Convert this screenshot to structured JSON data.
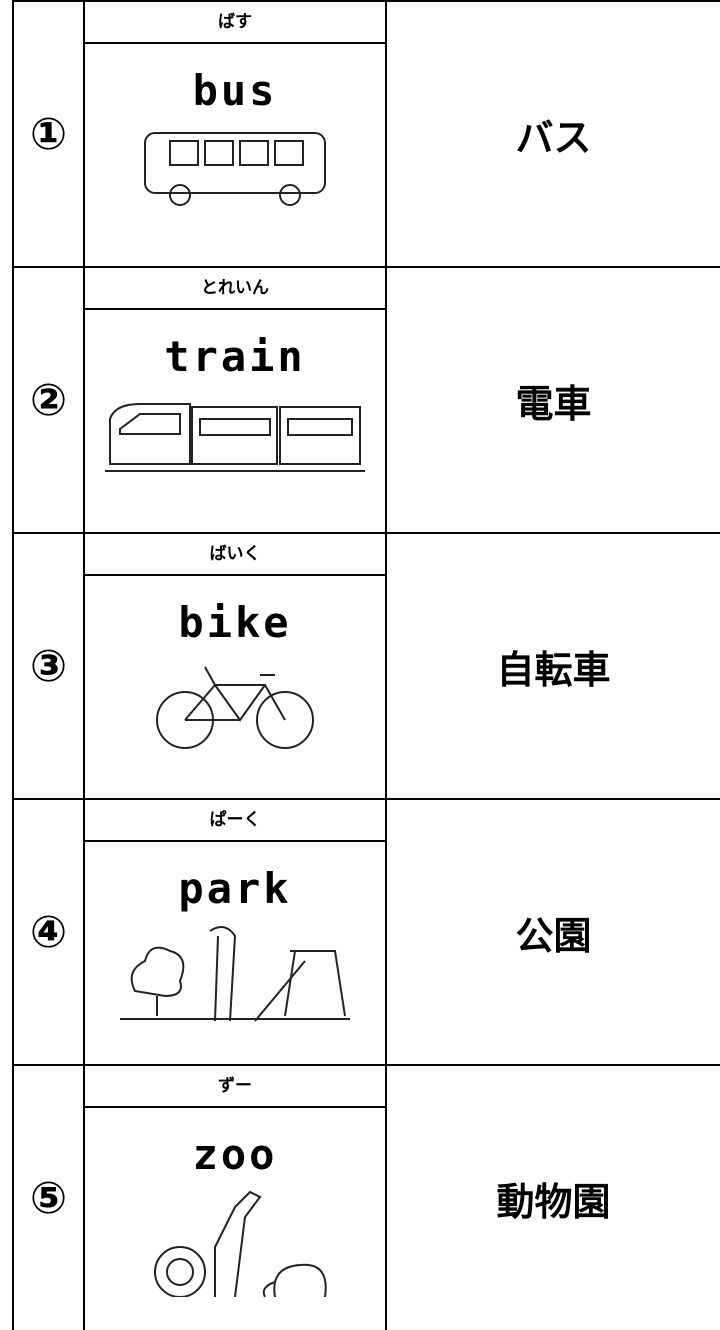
{
  "rows": [
    {
      "number": "①",
      "kana": "ばす",
      "word": "bus",
      "japanese": "バス"
    },
    {
      "number": "②",
      "kana": "とれいん",
      "word": "train",
      "japanese": "電車"
    },
    {
      "number": "③",
      "kana": "ばいく",
      "word": "bike",
      "japanese": "自転車"
    },
    {
      "number": "④",
      "kana": "ぱーく",
      "word": "park",
      "japanese": "公園"
    },
    {
      "number": "⑤",
      "kana": "ずー",
      "word": "zoo",
      "japanese": "動物園"
    }
  ]
}
